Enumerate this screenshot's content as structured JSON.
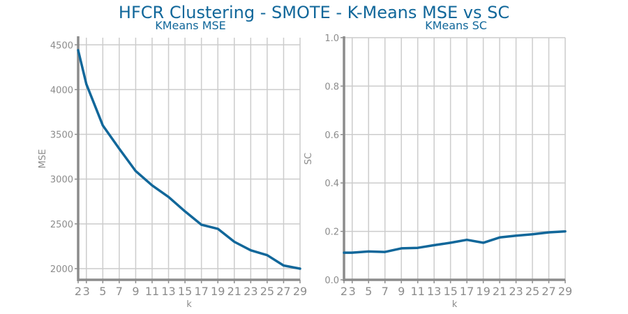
{
  "title": "HFCR Clustering - SMOTE - K-Means MSE vs SC",
  "colors": {
    "line": "#11679a",
    "title": "#11679a",
    "grid": "#cccccc",
    "axis": "#8c8c8c"
  },
  "chart_data": [
    {
      "type": "line",
      "title": "KMeans MSE",
      "xlabel": "k",
      "ylabel": "MSE",
      "x": [
        2,
        3,
        5,
        7,
        9,
        11,
        13,
        15,
        17,
        19,
        21,
        23,
        25,
        27,
        29
      ],
      "x_ticks": [
        2,
        3,
        5,
        7,
        9,
        11,
        13,
        15,
        17,
        19,
        21,
        23,
        25,
        27,
        29
      ],
      "y_ticks": [
        2000,
        2500,
        3000,
        3500,
        4000,
        4500
      ],
      "ylim": [
        1875,
        4580
      ],
      "xlim": [
        2,
        29
      ],
      "grid": true,
      "series": [
        {
          "values": [
            4440,
            4060,
            3600,
            3340,
            3090,
            2930,
            2800,
            2640,
            2490,
            2445,
            2300,
            2205,
            2150,
            2035,
            2000
          ]
        }
      ]
    },
    {
      "type": "line",
      "title": "KMeans SC",
      "xlabel": "k",
      "ylabel": "SC",
      "x": [
        2,
        3,
        5,
        7,
        9,
        11,
        13,
        15,
        17,
        19,
        21,
        23,
        25,
        27,
        29
      ],
      "x_ticks": [
        2,
        3,
        5,
        7,
        9,
        11,
        13,
        15,
        17,
        19,
        21,
        23,
        25,
        27,
        29
      ],
      "y_ticks": [
        0.0,
        0.2,
        0.4,
        0.6,
        0.8,
        1.0
      ],
      "ylim": [
        0,
        1
      ],
      "xlim": [
        2,
        29
      ],
      "grid": true,
      "series": [
        {
          "values": [
            0.112,
            0.112,
            0.117,
            0.115,
            0.13,
            0.132,
            0.143,
            0.153,
            0.165,
            0.153,
            0.175,
            0.182,
            0.188,
            0.196,
            0.2
          ]
        }
      ]
    }
  ]
}
